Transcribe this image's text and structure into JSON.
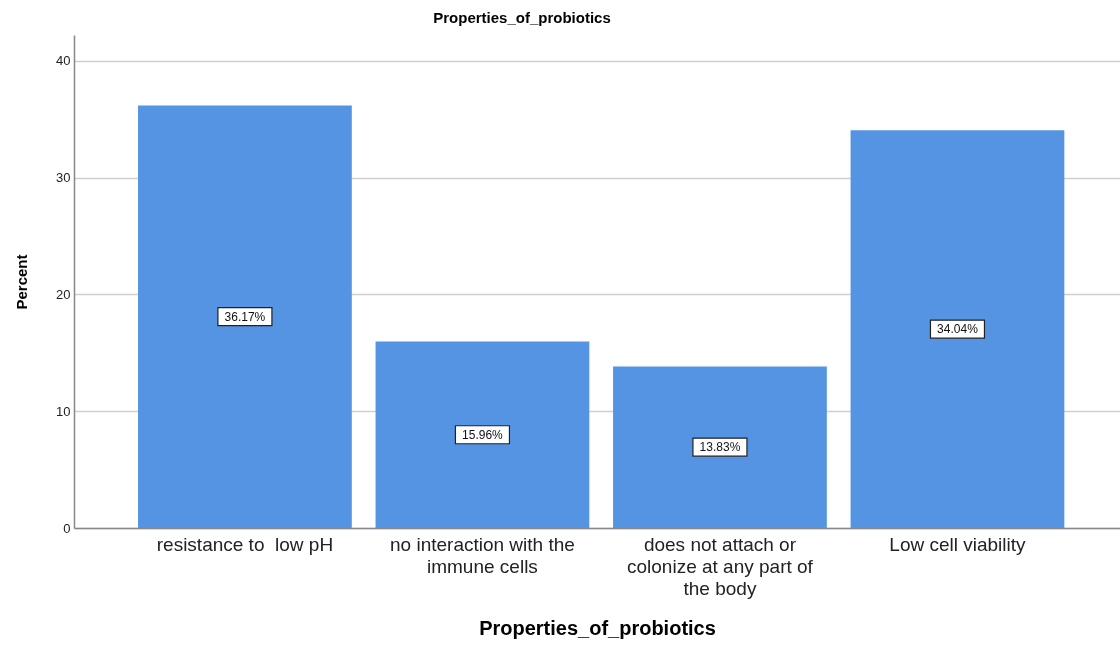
{
  "chart_data": {
    "type": "bar",
    "title": "Properties_of_probiotics",
    "xlabel": "Properties_of_probiotics",
    "ylabel": "Percent",
    "categories": [
      "resistance to  low pH",
      "no interaction with the immune cells",
      "does not attach or colonize at any part of the body",
      "Low cell viability"
    ],
    "values": [
      36.17,
      15.96,
      13.83,
      34.04
    ],
    "value_labels": [
      "36.17%",
      "15.96%",
      "13.83%",
      "34.04%"
    ],
    "color": "#5494e3",
    "ylim": [
      0,
      42.2
    ],
    "yticks": [
      0,
      10,
      20,
      30,
      40
    ],
    "grid": "y"
  }
}
